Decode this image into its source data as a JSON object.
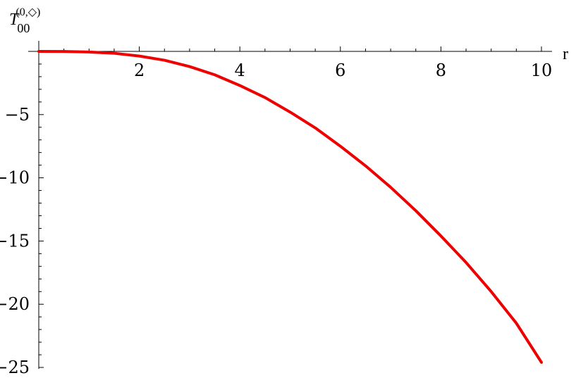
{
  "chart_data": {
    "type": "line",
    "title": "",
    "xlabel": "r",
    "ylabel": {
      "base": "T",
      "sub": "00",
      "sup": "(0,◇)"
    },
    "xlim": [
      0,
      10
    ],
    "ylim": [
      -25,
      0
    ],
    "x_ticks": [
      2,
      4,
      6,
      8,
      10
    ],
    "x_tick_labels": [
      "2",
      "4",
      "6",
      "8",
      "10"
    ],
    "y_ticks": [
      -5,
      -10,
      -15,
      -20,
      -25
    ],
    "y_tick_labels": [
      "−5",
      "−10",
      "−15",
      "−20",
      "−25"
    ],
    "grid": false,
    "series": [
      {
        "color": "#ee0000",
        "x": [
          0,
          0.5,
          1,
          1.5,
          2,
          2.5,
          3,
          3.5,
          4,
          4.5,
          5,
          5.5,
          6,
          6.5,
          7,
          7.5,
          8,
          8.5,
          9,
          9.5,
          10
        ],
        "y": [
          0,
          -0.01,
          -0.05,
          -0.15,
          -0.37,
          -0.7,
          -1.2,
          -1.85,
          -2.7,
          -3.65,
          -4.8,
          -6.05,
          -7.5,
          -9.05,
          -10.75,
          -12.6,
          -14.6,
          -16.7,
          -19.0,
          -21.5,
          -24.6
        ]
      }
    ]
  }
}
